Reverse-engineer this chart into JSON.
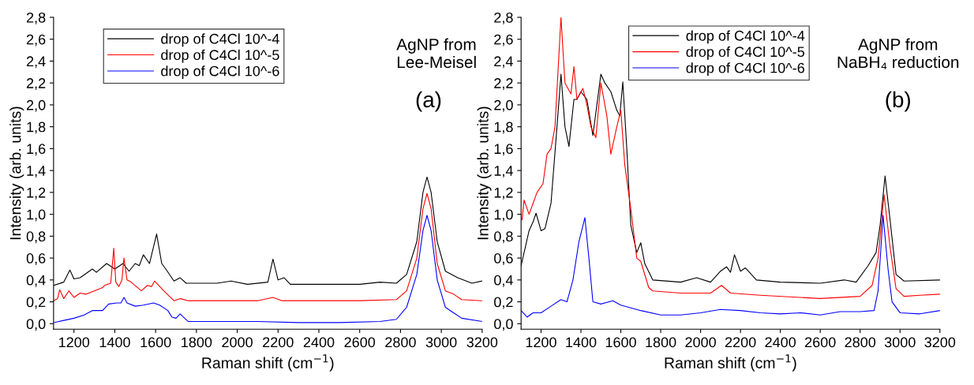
{
  "chart_data": [
    {
      "type": "line",
      "xlabel": "Raman shift (cm$^{−1}$)",
      "ylabel": "Intensity (arb. units)",
      "annotations": [
        "AgNP from\nLee-Meisel",
        "(a)"
      ],
      "legend": "top left",
      "grid": false,
      "xlim": [
        1100,
        3200
      ],
      "xticks": [
        1200,
        1400,
        1600,
        1800,
        2000,
        2200,
        2400,
        2600,
        2800,
        3000,
        3200
      ],
      "ylim": [
        -0.05,
        2.8
      ],
      "yticks": [
        {
          "value": 0.0,
          "label": "0,0"
        },
        {
          "value": 0.2,
          "label": "0,2"
        },
        {
          "value": 0.4,
          "label": "0,4"
        },
        {
          "value": 0.6,
          "label": "0,6"
        },
        {
          "value": 0.8,
          "label": "0,8"
        },
        {
          "value": 1.0,
          "label": "1,0"
        },
        {
          "value": 1.2,
          "label": "1,2"
        },
        {
          "value": 1.4,
          "label": "1,4"
        },
        {
          "value": 1.6,
          "label": "1,6"
        },
        {
          "value": 1.8,
          "label": "1,8"
        },
        {
          "value": 2.0,
          "label": "2,0"
        },
        {
          "value": 2.2,
          "label": "2,2"
        },
        {
          "value": 2.4,
          "label": "2,4"
        },
        {
          "value": 2.6,
          "label": "2,6"
        },
        {
          "value": 2.8,
          "label": "2,8"
        }
      ],
      "series": [
        {
          "name": "drop of C4Cl 10^-4",
          "color": "#000000",
          "x": [
            1100,
            1150,
            1180,
            1200,
            1230,
            1290,
            1310,
            1360,
            1400,
            1440,
            1470,
            1500,
            1520,
            1540,
            1570,
            1605,
            1630,
            1650,
            1690,
            1720,
            1750,
            1800,
            1900,
            1970,
            2050,
            2150,
            2175,
            2200,
            2230,
            2260,
            2400,
            2600,
            2700,
            2780,
            2830,
            2880,
            2910,
            2930,
            2950,
            2980,
            3020,
            3080,
            3150,
            3200
          ],
          "values": [
            0.35,
            0.38,
            0.49,
            0.41,
            0.42,
            0.5,
            0.47,
            0.55,
            0.5,
            0.55,
            0.48,
            0.55,
            0.53,
            0.63,
            0.55,
            0.82,
            0.55,
            0.5,
            0.39,
            0.42,
            0.37,
            0.37,
            0.37,
            0.39,
            0.36,
            0.38,
            0.59,
            0.4,
            0.42,
            0.36,
            0.36,
            0.36,
            0.38,
            0.37,
            0.45,
            0.75,
            1.2,
            1.34,
            1.2,
            0.75,
            0.48,
            0.42,
            0.37,
            0.39
          ]
        },
        {
          "name": "drop of C4Cl 10^-5",
          "color": "#ff0000",
          "x": [
            1100,
            1120,
            1130,
            1150,
            1175,
            1200,
            1230,
            1260,
            1300,
            1340,
            1350,
            1380,
            1395,
            1405,
            1420,
            1435,
            1445,
            1460,
            1480,
            1530,
            1560,
            1580,
            1595,
            1640,
            1690,
            1720,
            1760,
            1900,
            2100,
            2175,
            2220,
            2400,
            2600,
            2780,
            2830,
            2880,
            2910,
            2930,
            2950,
            2980,
            3020,
            3060,
            3100,
            3200
          ],
          "values": [
            0.21,
            0.23,
            0.31,
            0.23,
            0.3,
            0.24,
            0.28,
            0.27,
            0.3,
            0.33,
            0.35,
            0.37,
            0.69,
            0.38,
            0.34,
            0.4,
            0.6,
            0.4,
            0.38,
            0.3,
            0.35,
            0.34,
            0.39,
            0.3,
            0.21,
            0.23,
            0.21,
            0.21,
            0.21,
            0.24,
            0.21,
            0.21,
            0.21,
            0.22,
            0.3,
            0.6,
            1.05,
            1.19,
            1.05,
            0.55,
            0.3,
            0.27,
            0.22,
            0.21
          ]
        },
        {
          "name": "drop of C4Cl 10^-6",
          "color": "#0000ff",
          "x": [
            1100,
            1150,
            1200,
            1250,
            1290,
            1340,
            1370,
            1410,
            1430,
            1445,
            1460,
            1500,
            1540,
            1590,
            1620,
            1660,
            1680,
            1700,
            1720,
            1760,
            1900,
            2100,
            2300,
            2500,
            2700,
            2780,
            2830,
            2880,
            2910,
            2930,
            2950,
            2980,
            3020,
            3060,
            3100,
            3200
          ],
          "values": [
            0.01,
            0.03,
            0.05,
            0.08,
            0.12,
            0.12,
            0.18,
            0.19,
            0.19,
            0.24,
            0.19,
            0.16,
            0.17,
            0.19,
            0.17,
            0.12,
            0.06,
            0.05,
            0.09,
            0.02,
            0.02,
            0.02,
            0.01,
            0.01,
            0.02,
            0.04,
            0.15,
            0.45,
            0.85,
            0.99,
            0.85,
            0.4,
            0.15,
            0.1,
            0.05,
            0.02
          ]
        }
      ]
    },
    {
      "type": "line",
      "xlabel": "Raman shift (cm$^{−1}$)",
      "ylabel": "Intensity (arb. units)",
      "annotations": [
        "AgNP from\nNaBH₄ reduction",
        "(b)"
      ],
      "legend": "top",
      "grid": false,
      "xlim": [
        1100,
        3200
      ],
      "xticks": [
        1200,
        1400,
        1600,
        1800,
        2000,
        2200,
        2400,
        2600,
        2800,
        3000,
        3200
      ],
      "ylim": [
        -0.05,
        2.8
      ],
      "yticks": [
        {
          "value": 0.0,
          "label": "0,0"
        },
        {
          "value": 0.2,
          "label": "0,2"
        },
        {
          "value": 0.4,
          "label": "0,4"
        },
        {
          "value": 0.6,
          "label": "0,6"
        },
        {
          "value": 0.8,
          "label": "0,8"
        },
        {
          "value": 1.0,
          "label": "1,0"
        },
        {
          "value": 1.2,
          "label": "1,2"
        },
        {
          "value": 1.4,
          "label": "1,4"
        },
        {
          "value": 1.6,
          "label": "1,6"
        },
        {
          "value": 1.8,
          "label": "1,8"
        },
        {
          "value": 2.0,
          "label": "2,0"
        },
        {
          "value": 2.2,
          "label": "2,2"
        },
        {
          "value": 2.4,
          "label": "2,4"
        },
        {
          "value": 2.6,
          "label": "2,6"
        },
        {
          "value": 2.8,
          "label": "2,8"
        }
      ],
      "series": [
        {
          "name": "drop of C4Cl 10^-4",
          "color": "#000000",
          "x": [
            1100,
            1140,
            1160,
            1175,
            1200,
            1220,
            1250,
            1280,
            1300,
            1320,
            1340,
            1365,
            1380,
            1400,
            1430,
            1460,
            1500,
            1520,
            1550,
            1580,
            1595,
            1610,
            1630,
            1650,
            1680,
            1700,
            1720,
            1760,
            1900,
            1980,
            2050,
            2100,
            2130,
            2150,
            2170,
            2200,
            2225,
            2280,
            2400,
            2600,
            2720,
            2780,
            2840,
            2880,
            2900,
            2925,
            2950,
            2980,
            3020,
            3200
          ],
          "values": [
            0.53,
            0.85,
            0.93,
            1.01,
            0.85,
            0.87,
            1.1,
            1.8,
            2.28,
            1.8,
            1.62,
            2.05,
            2.05,
            2.12,
            2.05,
            1.72,
            2.28,
            2.2,
            2.12,
            1.95,
            1.9,
            2.21,
            1.6,
            0.9,
            0.65,
            0.74,
            0.55,
            0.4,
            0.38,
            0.42,
            0.38,
            0.48,
            0.52,
            0.47,
            0.63,
            0.48,
            0.51,
            0.4,
            0.38,
            0.37,
            0.4,
            0.38,
            0.53,
            0.65,
            0.9,
            1.35,
            0.95,
            0.45,
            0.39,
            0.4
          ]
        },
        {
          "name": "drop of C4Cl 10^-5",
          "color": "#ff0000",
          "x": [
            1105,
            1115,
            1140,
            1160,
            1180,
            1210,
            1230,
            1250,
            1270,
            1285,
            1300,
            1320,
            1350,
            1365,
            1380,
            1410,
            1430,
            1450,
            1475,
            1500,
            1530,
            1550,
            1580,
            1600,
            1620,
            1650,
            1680,
            1700,
            1740,
            1760,
            1900,
            2050,
            2105,
            2150,
            2300,
            2500,
            2600,
            2800,
            2860,
            2890,
            2920,
            2950,
            2980,
            3020,
            3100,
            3200
          ],
          "values": [
            0.95,
            1.13,
            1.0,
            1.1,
            1.2,
            1.28,
            1.55,
            1.6,
            1.8,
            2.3,
            2.8,
            2.2,
            2.1,
            2.35,
            2.05,
            2.15,
            2.0,
            1.8,
            1.7,
            2.2,
            1.9,
            1.55,
            1.8,
            1.95,
            1.45,
            1.05,
            0.6,
            0.57,
            0.33,
            0.3,
            0.28,
            0.28,
            0.35,
            0.28,
            0.26,
            0.24,
            0.23,
            0.25,
            0.35,
            0.6,
            1.18,
            0.7,
            0.32,
            0.25,
            0.26,
            0.27
          ]
        },
        {
          "name": "drop of C4Cl 10^-6",
          "color": "#0000ff",
          "x": [
            1100,
            1130,
            1160,
            1200,
            1250,
            1300,
            1330,
            1360,
            1390,
            1420,
            1440,
            1460,
            1500,
            1560,
            1600,
            1700,
            1800,
            1900,
            2000,
            2100,
            2200,
            2300,
            2400,
            2500,
            2600,
            2700,
            2800,
            2870,
            2890,
            2915,
            2940,
            2960,
            3000,
            3100,
            3200
          ],
          "values": [
            0.12,
            0.06,
            0.1,
            0.1,
            0.16,
            0.22,
            0.2,
            0.4,
            0.75,
            0.97,
            0.6,
            0.2,
            0.18,
            0.21,
            0.17,
            0.12,
            0.08,
            0.08,
            0.1,
            0.13,
            0.12,
            0.1,
            0.09,
            0.1,
            0.08,
            0.11,
            0.11,
            0.12,
            0.3,
            0.99,
            0.5,
            0.2,
            0.1,
            0.09,
            0.12
          ]
        }
      ]
    }
  ]
}
